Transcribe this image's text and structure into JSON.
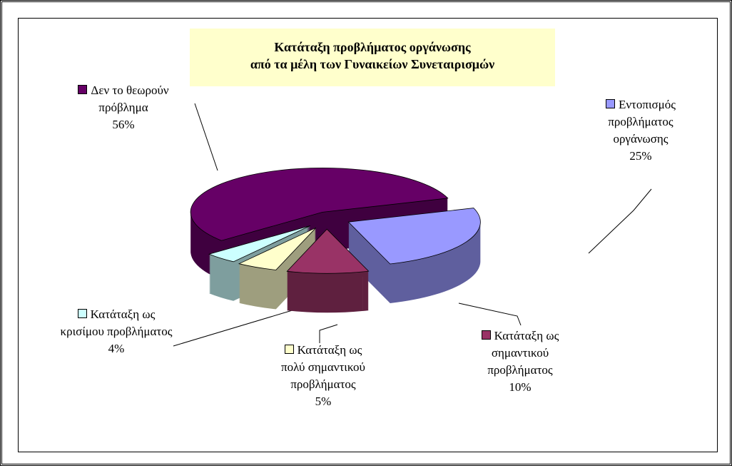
{
  "chart_data": {
    "type": "pie",
    "title": [
      "Κατάταξη προβλήματος οργάνωσης",
      "από τα μέλη των Γυναικείων Συνεταιρισμών"
    ],
    "categories": [
      "Δεν το θεωρούν πρόβλημα",
      "Εντοπισμός προβλήματος οργάνωσης",
      "Κατάταξη ως σημαντικού προβλήματος",
      "Κατάταξη ως πολύ σημαντικού προβλήματος",
      "Κατάταξη ως κρισίμου προβλήματος"
    ],
    "values": [
      56,
      25,
      10,
      5,
      4
    ],
    "value_labels": [
      "56%",
      "25%",
      "10%",
      "5%",
      "4%"
    ],
    "colors": [
      "#660066",
      "#9999ff",
      "#993366",
      "#ffffcc",
      "#ccffff"
    ]
  }
}
